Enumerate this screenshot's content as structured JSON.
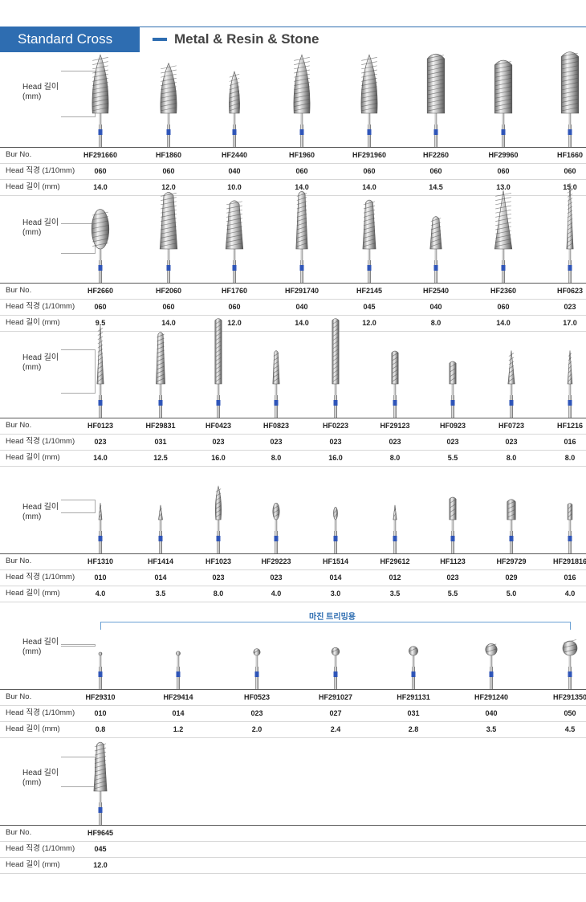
{
  "header": {
    "tab_label": "Standard Cross",
    "category": "Metal & Resin & Stone",
    "accent_color": "#2e6db1"
  },
  "labels": {
    "head_len_line1": "Head 길이",
    "head_len_line2": "(mm)",
    "row_bur": "Bur No.",
    "row_dia": "Head 직경 (1/10mm)",
    "row_len": "Head 길이 (mm)"
  },
  "margin_trimming_label": "마진 트리밍용",
  "sections": [
    {
      "burs": [
        {
          "no": "HF291660",
          "dia": "060",
          "len": "14.0",
          "shape": "flame"
        },
        {
          "no": "HF1860",
          "dia": "060",
          "len": "12.0",
          "shape": "flame"
        },
        {
          "no": "HF2440",
          "dia": "040",
          "len": "10.0",
          "shape": "flame"
        },
        {
          "no": "HF1960",
          "dia": "060",
          "len": "14.0",
          "shape": "flame"
        },
        {
          "no": "HF291960",
          "dia": "060",
          "len": "14.0",
          "shape": "flame"
        },
        {
          "no": "HF2260",
          "dia": "060",
          "len": "14.5",
          "shape": "cylinder"
        },
        {
          "no": "HF29960",
          "dia": "060",
          "len": "13.0",
          "shape": "cylinder"
        },
        {
          "no": "HF1660",
          "dia": "060",
          "len": "15.0",
          "shape": "cylinder"
        }
      ]
    },
    {
      "burs": [
        {
          "no": "HF2660",
          "dia": "060",
          "len": "9.5",
          "shape": "oval"
        },
        {
          "no": "HF2060",
          "dia": "060",
          "len": "14.0",
          "shape": "taper"
        },
        {
          "no": "HF1760",
          "dia": "060",
          "len": "12.0",
          "shape": "taper"
        },
        {
          "no": "HF291740",
          "dia": "040",
          "len": "14.0",
          "shape": "taper"
        },
        {
          "no": "HF2145",
          "dia": "045",
          "len": "12.0",
          "shape": "taper"
        },
        {
          "no": "HF2540",
          "dia": "040",
          "len": "8.0",
          "shape": "taper"
        },
        {
          "no": "HF2360",
          "dia": "060",
          "len": "14.0",
          "shape": "cone"
        },
        {
          "no": "HF0623",
          "dia": "023",
          "len": "17.0",
          "shape": "cone"
        }
      ]
    },
    {
      "burs": [
        {
          "no": "HF0123",
          "dia": "023",
          "len": "14.0",
          "shape": "cone"
        },
        {
          "no": "HF29831",
          "dia": "031",
          "len": "12.5",
          "shape": "taper"
        },
        {
          "no": "HF0423",
          "dia": "023",
          "len": "16.0",
          "shape": "cylinder"
        },
        {
          "no": "HF0823",
          "dia": "023",
          "len": "8.0",
          "shape": "taper"
        },
        {
          "no": "HF0223",
          "dia": "023",
          "len": "16.0",
          "shape": "cylinder"
        },
        {
          "no": "HF29123",
          "dia": "023",
          "len": "8.0",
          "shape": "cylinder"
        },
        {
          "no": "HF0923",
          "dia": "023",
          "len": "5.5",
          "shape": "cylinder"
        },
        {
          "no": "HF0723",
          "dia": "023",
          "len": "8.0",
          "shape": "cone"
        },
        {
          "no": "HF1216",
          "dia": "016",
          "len": "8.0",
          "shape": "cone"
        }
      ]
    },
    {
      "burs": [
        {
          "no": "HF1310",
          "dia": "010",
          "len": "4.0",
          "shape": "cone"
        },
        {
          "no": "HF1414",
          "dia": "014",
          "len": "3.5",
          "shape": "cone"
        },
        {
          "no": "HF1023",
          "dia": "023",
          "len": "8.0",
          "shape": "flame"
        },
        {
          "no": "HF29223",
          "dia": "023",
          "len": "4.0",
          "shape": "oval"
        },
        {
          "no": "HF1514",
          "dia": "014",
          "len": "3.0",
          "shape": "oval"
        },
        {
          "no": "HF29612",
          "dia": "012",
          "len": "3.5",
          "shape": "cone"
        },
        {
          "no": "HF1123",
          "dia": "023",
          "len": "5.5",
          "shape": "cylinder"
        },
        {
          "no": "HF29729",
          "dia": "029",
          "len": "5.0",
          "shape": "cylinder"
        },
        {
          "no": "HF291816",
          "dia": "016",
          "len": "4.0",
          "shape": "cylinder"
        }
      ]
    },
    {
      "burs": [
        {
          "no": "HF29310",
          "dia": "010",
          "len": "0.8",
          "shape": "ball"
        },
        {
          "no": "HF29414",
          "dia": "014",
          "len": "1.2",
          "shape": "ball"
        },
        {
          "no": "HF0523",
          "dia": "023",
          "len": "2.0",
          "shape": "ball"
        },
        {
          "no": "HF291027",
          "dia": "027",
          "len": "2.4",
          "shape": "ball"
        },
        {
          "no": "HF291131",
          "dia": "031",
          "len": "2.8",
          "shape": "ball"
        },
        {
          "no": "HF291240",
          "dia": "040",
          "len": "3.5",
          "shape": "ball"
        },
        {
          "no": "HF291350",
          "dia": "050",
          "len": "4.5",
          "shape": "ball"
        }
      ]
    },
    {
      "burs": [
        {
          "no": "HF9645",
          "dia": "045",
          "len": "12.0",
          "shape": "taper"
        }
      ]
    }
  ]
}
